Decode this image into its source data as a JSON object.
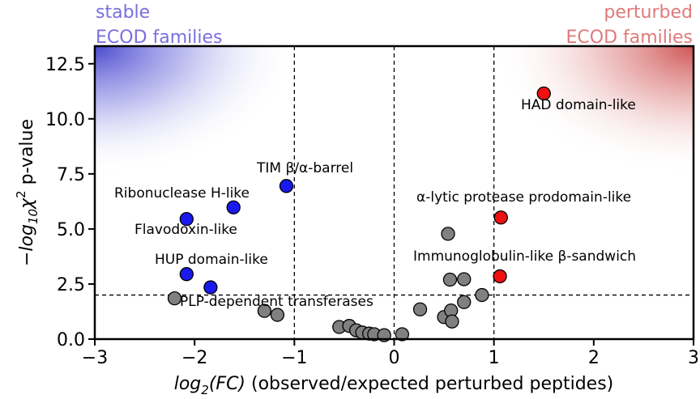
{
  "chart_data": {
    "type": "scatter",
    "xlabel_prefix": "log",
    "xlabel_sub": "2",
    "xlabel_fn": "(FC)",
    "xlabel_rest": " (observed/expected perturbed peptides)",
    "ylabel_prefix": "−log",
    "ylabel_sub": "10",
    "ylabel_chi": "χ",
    "ylabel_sup": "2",
    "ylabel_rest": " p-value",
    "xlim": [
      -3,
      3
    ],
    "ylim": [
      0,
      13.3
    ],
    "xticks": [
      -3,
      -2,
      -1,
      0,
      1,
      2,
      3
    ],
    "xtick_labels": [
      "−3",
      "−2",
      "−1",
      "0",
      "1",
      "2",
      "3"
    ],
    "yticks": [
      0,
      2.5,
      5,
      7.5,
      10,
      12.5
    ],
    "ytick_labels": [
      "0.0",
      "2.5",
      "5.0",
      "7.5",
      "10.0",
      "12.5"
    ],
    "vlines": [
      -1,
      0,
      1
    ],
    "hline": 2,
    "grid": false,
    "corner_labels": {
      "left_line1": "stable",
      "left_line2": "ECOD families",
      "right_line1": "perturbed",
      "right_line2": "ECOD families"
    },
    "colors": {
      "stable": "#1a1aee",
      "perturbed": "#ee1111",
      "neutral": "#808080",
      "stable_text": "#7b6ee0",
      "perturbed_text": "#e07a7a"
    },
    "series": [
      {
        "group": "stable",
        "points": [
          {
            "x": -1.08,
            "y": 6.95,
            "label": "TIM β/α-barrel"
          },
          {
            "x": -1.61,
            "y": 5.98,
            "label": "Ribonuclease H-like"
          },
          {
            "x": -2.08,
            "y": 5.45,
            "label": "Flavodoxin-like"
          },
          {
            "x": -2.08,
            "y": 2.95,
            "label": "HUP domain-like"
          },
          {
            "x": -1.84,
            "y": 2.35,
            "label": "PLP-dependent transferases"
          }
        ]
      },
      {
        "group": "perturbed",
        "points": [
          {
            "x": 1.5,
            "y": 11.15,
            "label": "HAD domain-like"
          },
          {
            "x": 1.07,
            "y": 5.52,
            "label": "α-lytic protease prodomain-like"
          },
          {
            "x": 1.06,
            "y": 2.85,
            "label": "Immunoglobulin-like β-sandwich"
          }
        ]
      },
      {
        "group": "neutral",
        "points": [
          {
            "x": -2.2,
            "y": 1.85
          },
          {
            "x": -1.3,
            "y": 1.28
          },
          {
            "x": -1.17,
            "y": 1.1
          },
          {
            "x": -0.55,
            "y": 0.55
          },
          {
            "x": -0.45,
            "y": 0.6
          },
          {
            "x": -0.38,
            "y": 0.4
          },
          {
            "x": -0.32,
            "y": 0.3
          },
          {
            "x": -0.25,
            "y": 0.25
          },
          {
            "x": -0.2,
            "y": 0.22
          },
          {
            "x": -0.1,
            "y": 0.18
          },
          {
            "x": 0.08,
            "y": 0.22
          },
          {
            "x": 0.26,
            "y": 1.35
          },
          {
            "x": 0.5,
            "y": 1.0
          },
          {
            "x": 0.54,
            "y": 4.78
          },
          {
            "x": 0.56,
            "y": 2.7
          },
          {
            "x": 0.57,
            "y": 1.3
          },
          {
            "x": 0.58,
            "y": 0.8
          },
          {
            "x": 0.7,
            "y": 2.72
          },
          {
            "x": 0.7,
            "y": 1.68
          },
          {
            "x": 0.88,
            "y": 2.0
          }
        ]
      }
    ]
  }
}
